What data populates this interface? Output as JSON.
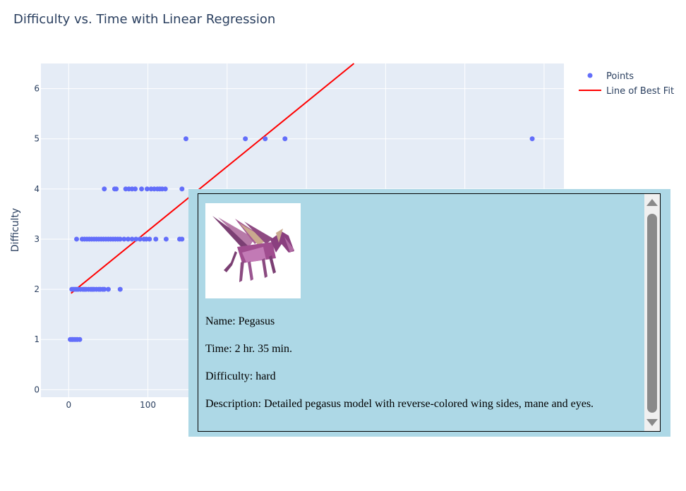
{
  "chart_data": {
    "type": "scatter",
    "title": "Difficulty vs. Time with Linear Regression",
    "xlabel": "",
    "ylabel": "Difficulty",
    "xlim": [
      -35,
      625
    ],
    "ylim": [
      -0.15,
      6.5
    ],
    "x_ticks": [
      "0",
      "100"
    ],
    "y_ticks": [
      "0",
      "1",
      "2",
      "3",
      "4",
      "5",
      "6"
    ],
    "grid": true,
    "legend_position": "top-right",
    "series": [
      {
        "name": "Points",
        "color": "#636efa",
        "points": [
          [
            2,
            1
          ],
          [
            4,
            1
          ],
          [
            5,
            1
          ],
          [
            7,
            1
          ],
          [
            9,
            1
          ],
          [
            11,
            1
          ],
          [
            14,
            1
          ],
          [
            4,
            2
          ],
          [
            6,
            2
          ],
          [
            8,
            2
          ],
          [
            10,
            2
          ],
          [
            12,
            2
          ],
          [
            15,
            2
          ],
          [
            18,
            2
          ],
          [
            20,
            2
          ],
          [
            22,
            2
          ],
          [
            25,
            2
          ],
          [
            28,
            2
          ],
          [
            30,
            2
          ],
          [
            32,
            2
          ],
          [
            35,
            2
          ],
          [
            38,
            2
          ],
          [
            40,
            2
          ],
          [
            43,
            2
          ],
          [
            45,
            2
          ],
          [
            50,
            2
          ],
          [
            65,
            2
          ],
          [
            10,
            3
          ],
          [
            17,
            3
          ],
          [
            20,
            3
          ],
          [
            23,
            3
          ],
          [
            26,
            3
          ],
          [
            29,
            3
          ],
          [
            32,
            3
          ],
          [
            35,
            3
          ],
          [
            38,
            3
          ],
          [
            41,
            3
          ],
          [
            44,
            3
          ],
          [
            47,
            3
          ],
          [
            50,
            3
          ],
          [
            53,
            3
          ],
          [
            56,
            3
          ],
          [
            59,
            3
          ],
          [
            62,
            3
          ],
          [
            65,
            3
          ],
          [
            70,
            3
          ],
          [
            75,
            3
          ],
          [
            80,
            3
          ],
          [
            85,
            3
          ],
          [
            90,
            3
          ],
          [
            95,
            3
          ],
          [
            98,
            3
          ],
          [
            102,
            3
          ],
          [
            110,
            3
          ],
          [
            123,
            3
          ],
          [
            140,
            3
          ],
          [
            143,
            3
          ],
          [
            45,
            4
          ],
          [
            58,
            4
          ],
          [
            60,
            4
          ],
          [
            72,
            4
          ],
          [
            76,
            4
          ],
          [
            80,
            4
          ],
          [
            84,
            4
          ],
          [
            92,
            4
          ],
          [
            99,
            4
          ],
          [
            104,
            4
          ],
          [
            108,
            4
          ],
          [
            112,
            4
          ],
          [
            115,
            4
          ],
          [
            118,
            4
          ],
          [
            122,
            4
          ],
          [
            143,
            4
          ],
          [
            148,
            5
          ],
          [
            223,
            5
          ],
          [
            248,
            5
          ],
          [
            273,
            5
          ],
          [
            585,
            5
          ]
        ]
      },
      {
        "name": "Line of Best Fit",
        "color": "#ff0000",
        "line": [
          [
            3,
            1.92
          ],
          [
            360,
            6.5
          ]
        ]
      }
    ]
  },
  "popup": {
    "image_icon": "pegasus-origami-photo",
    "name": "Name: Pegasus",
    "time": "Time: 2 hr. 35 min.",
    "difficulty": "Difficulty: hard",
    "description": "Description: Detailed pegasus model with reverse-colored wing sides, mane and eyes."
  }
}
